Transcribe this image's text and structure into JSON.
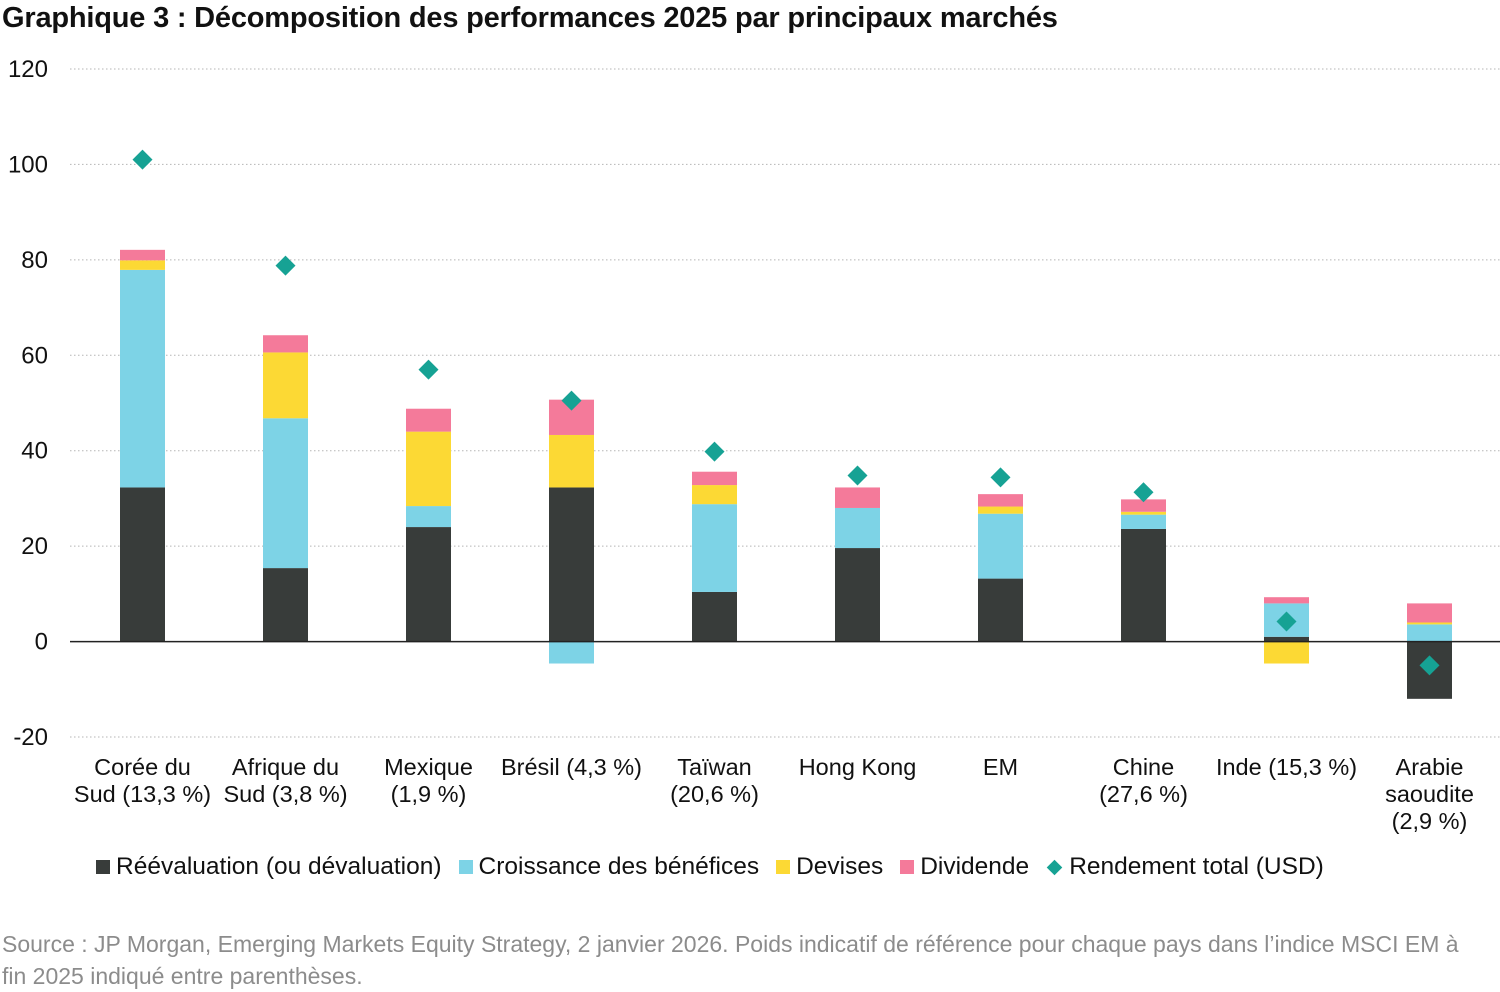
{
  "title": "Graphique 3 : Décomposition des performances 2025 par principaux marchés",
  "source": "Source : JP Morgan, Emerging Markets Equity Strategy, 2 janvier 2026. Poids indicatif de référence pour chaque pays dans l’indice MSCI EM à fin 2025 indiqué entre parenthèses.",
  "colors": {
    "reevaluation": "#383c3a",
    "croissance": "#7dd3e6",
    "devises": "#fcd934",
    "dividende": "#f47a9a",
    "rendement": "#16a294"
  },
  "chart_data": {
    "type": "bar",
    "stacked": true,
    "categories": [
      [
        "Corée du",
        "Sud (13,3 %)"
      ],
      [
        "Afrique du",
        "Sud (3,8 %)"
      ],
      [
        "Mexique",
        "(1,9 %)"
      ],
      [
        "Brésil (4,3 %)"
      ],
      [
        "Taïwan",
        "(20,6 %)"
      ],
      [
        "Hong Kong"
      ],
      [
        "EM"
      ],
      [
        "Chine",
        "(27,6 %)"
      ],
      [
        "Inde (15,3 %)"
      ],
      [
        "Arabie",
        "saoudite",
        "(2,9 %)"
      ]
    ],
    "series": [
      {
        "name": "Réévaluation (ou dévaluation)",
        "color_key": "reevaluation",
        "values": [
          32.3,
          15.4,
          24.0,
          32.3,
          10.4,
          19.6,
          13.2,
          23.6,
          1.0,
          -12.0
        ]
      },
      {
        "name": "Croissance des bénéfices",
        "color_key": "croissance",
        "values": [
          45.6,
          31.4,
          4.4,
          -4.6,
          18.4,
          8.4,
          13.6,
          3.0,
          7.0,
          3.6
        ]
      },
      {
        "name": "Devises",
        "color_key": "devises",
        "values": [
          2.0,
          13.8,
          15.6,
          11.0,
          4.0,
          0.0,
          1.5,
          0.6,
          -4.6,
          0.4
        ]
      },
      {
        "name": "Dividende",
        "color_key": "dividende",
        "values": [
          2.2,
          3.6,
          4.8,
          7.4,
          2.8,
          4.3,
          2.6,
          2.6,
          1.3,
          4.0
        ]
      }
    ],
    "markers": {
      "name": "Rendement total (USD)",
      "color_key": "rendement",
      "shape": "diamond",
      "values": [
        101.0,
        78.8,
        57.0,
        50.5,
        39.8,
        34.8,
        34.4,
        31.3,
        4.2,
        -5.0
      ]
    },
    "yticks": [
      "120",
      "100",
      "80",
      "60",
      "40",
      "20",
      "0",
      "-20"
    ],
    "ylim": [
      -20,
      120
    ],
    "grid": "dotted horizontal",
    "legend_position": "bottom"
  }
}
